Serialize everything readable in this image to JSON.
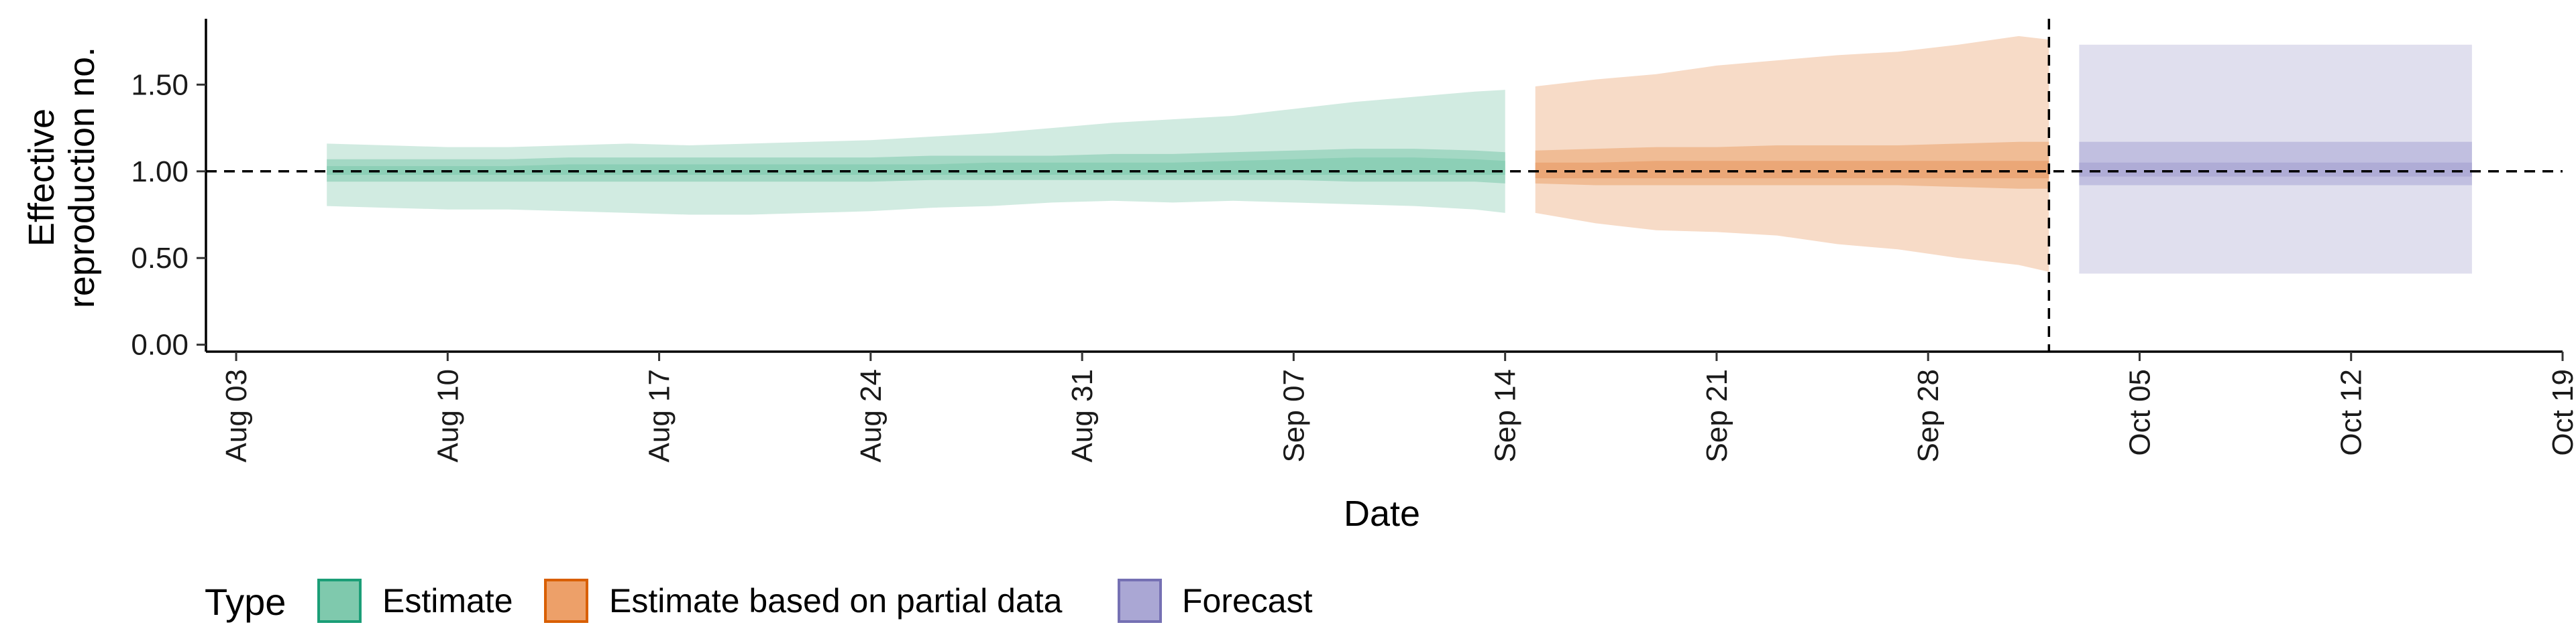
{
  "chart_data": {
    "type": "area",
    "xlabel": "Date",
    "ylabel": [
      "Effective",
      "reproduction no."
    ],
    "ylim": [
      -0.04,
      1.88
    ],
    "yticks": [
      0,
      0.5,
      1,
      1.5
    ],
    "ytick_labels": [
      "0.00",
      "0.50",
      "1.00",
      "1.50"
    ],
    "xlim": [
      "2020-08-02",
      "2020-10-19"
    ],
    "xticks": [
      "2020-08-03",
      "2020-08-10",
      "2020-08-17",
      "2020-08-24",
      "2020-08-31",
      "2020-09-07",
      "2020-09-14",
      "2020-09-21",
      "2020-09-28",
      "2020-10-05",
      "2020-10-12",
      "2020-10-19"
    ],
    "xtick_labels": [
      "Aug 03",
      "Aug 10",
      "Aug 17",
      "Aug 24",
      "Aug 31",
      "Sep 07",
      "Sep 14",
      "Sep 21",
      "Sep 28",
      "Oct 05",
      "Oct 12",
      "Oct 19"
    ],
    "reference_line_y": 1.0,
    "forecast_start_line_x": "2020-10-02",
    "grid": false,
    "legend": {
      "title": "Type",
      "position": "bottom-left",
      "items": [
        {
          "label": "Estimate",
          "fill": "#7fc9ad",
          "stroke": "#1b9e77"
        },
        {
          "label": "Estimate based on partial data",
          "fill": "#eda069",
          "stroke": "#d95f02"
        },
        {
          "label": "Forecast",
          "fill": "#aaa7d4",
          "stroke": "#7570b3"
        }
      ]
    },
    "series": [
      {
        "type": "Estimate",
        "colors": {
          "outer": "#d1ebe1",
          "mid": "#a3d8c4",
          "inner": "#8ccfb6"
        },
        "x": [
          "2020-08-06",
          "2020-08-08",
          "2020-08-10",
          "2020-08-12",
          "2020-08-14",
          "2020-08-16",
          "2020-08-18",
          "2020-08-20",
          "2020-08-22",
          "2020-08-24",
          "2020-08-26",
          "2020-08-28",
          "2020-08-30",
          "2020-09-01",
          "2020-09-03",
          "2020-09-05",
          "2020-09-07",
          "2020-09-09",
          "2020-09-11",
          "2020-09-13",
          "2020-09-14"
        ],
        "outer_lower": [
          0.8,
          0.79,
          0.78,
          0.78,
          0.77,
          0.76,
          0.75,
          0.75,
          0.76,
          0.77,
          0.79,
          0.8,
          0.82,
          0.83,
          0.82,
          0.83,
          0.82,
          0.81,
          0.8,
          0.78,
          0.76
        ],
        "outer_upper": [
          1.16,
          1.15,
          1.14,
          1.14,
          1.15,
          1.16,
          1.15,
          1.16,
          1.17,
          1.18,
          1.2,
          1.22,
          1.25,
          1.28,
          1.3,
          1.32,
          1.36,
          1.4,
          1.43,
          1.46,
          1.47
        ],
        "mid_lower": [
          0.94,
          0.94,
          0.94,
          0.94,
          0.94,
          0.94,
          0.94,
          0.94,
          0.94,
          0.94,
          0.95,
          0.95,
          0.95,
          0.95,
          0.95,
          0.95,
          0.95,
          0.94,
          0.94,
          0.94,
          0.93
        ],
        "mid_upper": [
          1.07,
          1.07,
          1.07,
          1.07,
          1.08,
          1.08,
          1.08,
          1.08,
          1.08,
          1.08,
          1.09,
          1.09,
          1.09,
          1.1,
          1.1,
          1.11,
          1.12,
          1.13,
          1.13,
          1.12,
          1.11
        ],
        "inner_lower": [
          0.98,
          0.98,
          0.98,
          0.98,
          0.98,
          0.98,
          0.98,
          0.98,
          0.98,
          0.98,
          0.98,
          0.98,
          0.98,
          0.98,
          0.98,
          0.98,
          0.98,
          0.98,
          0.98,
          0.98,
          0.98
        ],
        "inner_upper": [
          1.03,
          1.03,
          1.03,
          1.03,
          1.04,
          1.04,
          1.04,
          1.04,
          1.04,
          1.04,
          1.04,
          1.05,
          1.05,
          1.05,
          1.05,
          1.06,
          1.07,
          1.08,
          1.08,
          1.07,
          1.06
        ]
      },
      {
        "type": "Estimate based on partial data",
        "colors": {
          "outer": "#f7dbc7",
          "mid": "#f0bc95",
          "inner": "#eba777"
        },
        "x": [
          "2020-09-15",
          "2020-09-17",
          "2020-09-19",
          "2020-09-21",
          "2020-09-23",
          "2020-09-25",
          "2020-09-27",
          "2020-09-29",
          "2020-10-01",
          "2020-10-02"
        ],
        "outer_lower": [
          0.76,
          0.7,
          0.66,
          0.65,
          0.63,
          0.58,
          0.55,
          0.5,
          0.46,
          0.42
        ],
        "outer_upper": [
          1.49,
          1.53,
          1.56,
          1.61,
          1.64,
          1.67,
          1.69,
          1.73,
          1.78,
          1.76
        ],
        "mid_lower": [
          0.93,
          0.92,
          0.92,
          0.92,
          0.92,
          0.92,
          0.92,
          0.91,
          0.9,
          0.9
        ],
        "mid_upper": [
          1.12,
          1.13,
          1.14,
          1.14,
          1.15,
          1.15,
          1.15,
          1.16,
          1.17,
          1.17
        ],
        "inner_lower": [
          0.96,
          0.96,
          0.96,
          0.96,
          0.96,
          0.96,
          0.96,
          0.96,
          0.96,
          0.96
        ],
        "inner_upper": [
          1.05,
          1.05,
          1.06,
          1.06,
          1.06,
          1.06,
          1.06,
          1.06,
          1.06,
          1.06
        ]
      },
      {
        "type": "Forecast",
        "colors": {
          "outer": "#e0dfee",
          "mid": "#c1bfe0",
          "inner": "#afacd6"
        },
        "x": [
          "2020-10-03",
          "2020-10-16"
        ],
        "outer_lower": [
          0.41,
          0.41
        ],
        "outer_upper": [
          1.73,
          1.73
        ],
        "mid_lower": [
          0.92,
          0.92
        ],
        "mid_upper": [
          1.17,
          1.17
        ],
        "inner_lower": [
          0.97,
          0.97
        ],
        "inner_upper": [
          1.05,
          1.05
        ]
      }
    ]
  }
}
